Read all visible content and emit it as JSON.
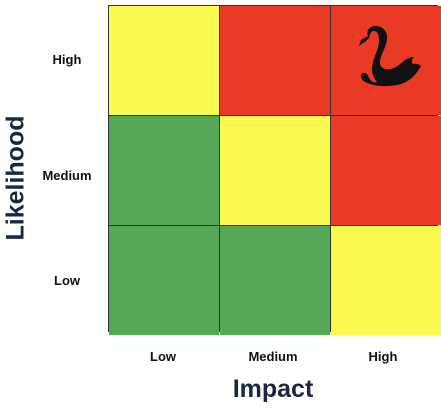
{
  "axes": {
    "y_title": "Likelihood",
    "x_title": "Impact",
    "row_labels": [
      "High",
      "Medium",
      "Low"
    ],
    "col_labels": [
      "Low",
      "Medium",
      "High"
    ]
  },
  "colors": {
    "green": "#56a858",
    "yellow": "#fbfb4f",
    "red": "#e93a26",
    "grid_line": "#333333",
    "axis_title": "#1a2741",
    "swan": "#111111"
  },
  "grid": {
    "rows": [
      [
        "yellow",
        "red",
        "red"
      ],
      [
        "green",
        "yellow",
        "red"
      ],
      [
        "green",
        "green",
        "yellow"
      ]
    ]
  },
  "icons": {
    "high_high_cell": "black-swan-icon"
  }
}
